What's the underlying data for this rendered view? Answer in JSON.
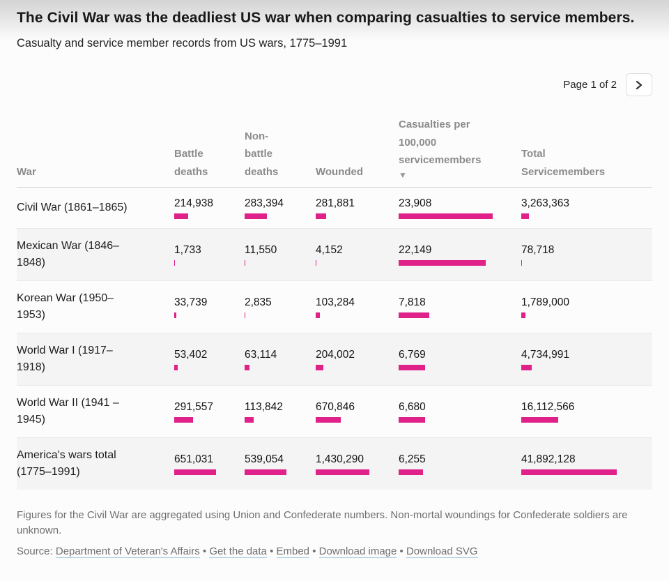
{
  "header": {
    "title": "The Civil War was the deadliest US war when comparing casualties to service members.",
    "subtitle": "Casualty and service member records from US wars, 1775–1991"
  },
  "pagination": {
    "label": "Page 1 of 2",
    "next_icon": "chevron-right-icon"
  },
  "table": {
    "columns": [
      "War",
      "Battle deaths",
      "Non-battle deaths",
      "Wounded",
      "Casualties per 100,000 servicemembers",
      "Total Servicemembers"
    ],
    "sort_indicator": "▼",
    "sorted_column": "Casualties per 100,000 servicemembers"
  },
  "footer": {
    "notes": "Figures for the Civil War are aggregated using Union and Confederate numbers. Non-mortal woundings for Confederate soldiers are unknown.",
    "source_label": "Source:",
    "links": [
      "Department of Veteran's Affairs",
      "Get the data",
      "Embed",
      "Download image",
      "Download SVG"
    ],
    "separator": "•"
  },
  "colors": {
    "bar": "#e0218a",
    "alt_row_bg": "#f4f4f4",
    "header_text": "#8b8b8b"
  },
  "chart_data": {
    "type": "table",
    "title": "The Civil War was the deadliest US war when comparing casualties to service members.",
    "subtitle": "Casualty and service member records from US wars, 1775–1991",
    "columns": [
      "War",
      "Battle deaths",
      "Non-battle deaths",
      "Wounded",
      "Casualties per 100,000 servicemembers",
      "Total Servicemembers"
    ],
    "sort": {
      "column": "Casualties per 100,000 servicemembers",
      "direction": "desc"
    },
    "bar_scaling": "per-column, bar length proportional to column maximum",
    "rows": [
      {
        "war": "Civil War (1861–1865)",
        "display": [
          "214,938",
          "283,394",
          "281,881",
          "23,908",
          "3,263,363"
        ],
        "values": [
          214938,
          283394,
          281881,
          23908,
          3263363
        ]
      },
      {
        "war": "Mexican War (1846–1848)",
        "display": [
          "1,733",
          "11,550",
          "4,152",
          "22,149",
          "78,718"
        ],
        "values": [
          1733,
          11550,
          4152,
          22149,
          78718
        ]
      },
      {
        "war": "Korean War (1950–1953)",
        "display": [
          "33,739",
          "2,835",
          "103,284",
          "7,818",
          "1,789,000"
        ],
        "values": [
          33739,
          2835,
          103284,
          7818,
          1789000
        ]
      },
      {
        "war": "World War I (1917–1918)",
        "display": [
          "53,402",
          "63,114",
          "204,002",
          "6,769",
          "4,734,991"
        ],
        "values": [
          53402,
          63114,
          204002,
          6769,
          4734991
        ]
      },
      {
        "war": "World War II (1941 – 1945)",
        "display": [
          "291,557",
          "113,842",
          "670,846",
          "6,680",
          "16,112,566"
        ],
        "values": [
          291557,
          113842,
          670846,
          6680,
          16112566
        ]
      },
      {
        "war": "America's wars total (1775–1991)",
        "display": [
          "651,031",
          "539,054",
          "1,430,290",
          "6,255",
          "41,892,128"
        ],
        "values": [
          651031,
          539054,
          1430290,
          6255,
          41892128
        ]
      }
    ]
  }
}
